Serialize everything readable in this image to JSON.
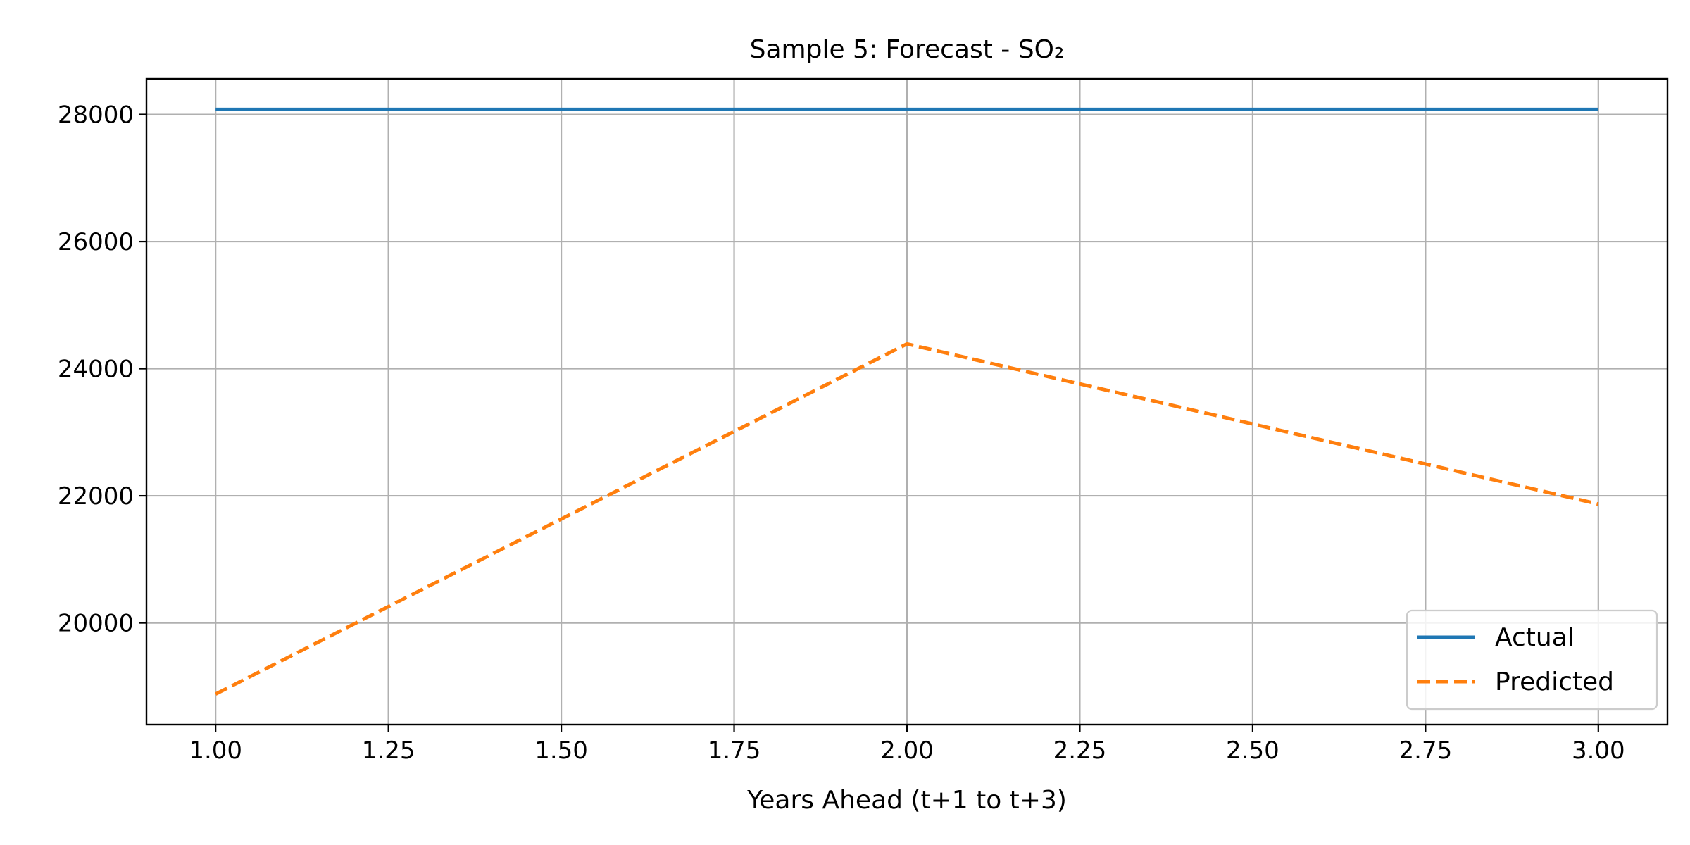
{
  "chart_data": {
    "type": "line",
    "title": "Sample 5: Forecast - SO₂",
    "xlabel": "Years Ahead (t+1 to t+3)",
    "ylabel": "",
    "xlim": [
      0.9,
      3.1
    ],
    "ylim": [
      18400,
      28560
    ],
    "xticks": [
      1.0,
      1.25,
      1.5,
      1.75,
      2.0,
      2.25,
      2.5,
      2.75,
      3.0
    ],
    "xtick_labels": [
      "1.00",
      "1.25",
      "1.50",
      "1.75",
      "2.00",
      "2.25",
      "2.50",
      "2.75",
      "3.00"
    ],
    "yticks": [
      20000,
      22000,
      24000,
      26000,
      28000
    ],
    "ytick_labels": [
      "20000",
      "22000",
      "24000",
      "26000",
      "28000"
    ],
    "grid": true,
    "legend": {
      "placement": "lower-right"
    },
    "series": [
      {
        "name": "Actual",
        "color": "#1f77b4",
        "style": "solid",
        "x": [
          1,
          2,
          3
        ],
        "y": [
          28080,
          28080,
          28080
        ]
      },
      {
        "name": "Predicted",
        "color": "#ff7f0e",
        "style": "dashed",
        "x": [
          1,
          2,
          3
        ],
        "y": [
          18880,
          24390,
          21870
        ]
      }
    ]
  }
}
